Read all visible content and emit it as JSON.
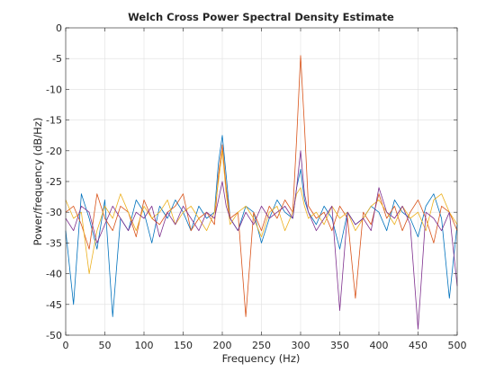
{
  "chart_data": {
    "type": "line",
    "title": "Welch Cross Power Spectral Density Estimate",
    "xlabel": "Frequency (Hz)",
    "ylabel": "Power/frequency (dB/Hz)",
    "xlim": [
      0,
      500
    ],
    "ylim": [
      -50,
      0
    ],
    "xticks": [
      0,
      50,
      100,
      150,
      200,
      250,
      300,
      350,
      400,
      450,
      500
    ],
    "yticks": [
      0,
      -5,
      -10,
      -15,
      -20,
      -25,
      -30,
      -35,
      -40,
      -45,
      -50
    ],
    "grid": true,
    "legend": "none",
    "colors": [
      "#0072BD",
      "#D95319",
      "#EDB120",
      "#7E2F8E"
    ],
    "series": [
      {
        "color": "#0072BD",
        "x": [
          0,
          10,
          20,
          30,
          40,
          50,
          60,
          70,
          80,
          90,
          100,
          110,
          120,
          130,
          140,
          150,
          160,
          170,
          180,
          190,
          195,
          200,
          205,
          210,
          220,
          230,
          240,
          250,
          260,
          270,
          280,
          290,
          295,
          300,
          305,
          310,
          320,
          330,
          340,
          350,
          360,
          370,
          380,
          390,
          400,
          410,
          420,
          430,
          440,
          450,
          460,
          470,
          480,
          490,
          500
        ],
        "y": [
          -33,
          -45,
          -27,
          -31,
          -36,
          -28,
          -47,
          -31,
          -33,
          -28,
          -30,
          -35,
          -29,
          -31,
          -28,
          -30,
          -33,
          -29,
          -31,
          -30,
          -22,
          -17.5,
          -24,
          -31,
          -33,
          -29,
          -30,
          -35,
          -31,
          -28,
          -30,
          -31,
          -26,
          -23,
          -28,
          -30,
          -32,
          -29,
          -31,
          -36,
          -30,
          -32,
          -31,
          -29,
          -30,
          -33,
          -28,
          -30,
          -31,
          -34,
          -29,
          -27,
          -31,
          -44,
          -32
        ]
      },
      {
        "color": "#D95319",
        "x": [
          0,
          10,
          20,
          30,
          40,
          50,
          60,
          70,
          80,
          90,
          100,
          110,
          120,
          130,
          140,
          150,
          160,
          170,
          180,
          190,
          195,
          200,
          205,
          210,
          220,
          230,
          240,
          250,
          260,
          270,
          280,
          290,
          295,
          300,
          305,
          310,
          320,
          330,
          340,
          350,
          360,
          370,
          380,
          390,
          400,
          410,
          420,
          430,
          440,
          450,
          460,
          470,
          480,
          490,
          500
        ],
        "y": [
          -30,
          -29,
          -32,
          -36,
          -27,
          -31,
          -33,
          -29,
          -30,
          -34,
          -28,
          -31,
          -32,
          -30,
          -29,
          -27,
          -33,
          -31,
          -30,
          -32,
          -24,
          -19,
          -26,
          -31,
          -30,
          -47,
          -30,
          -33,
          -29,
          -31,
          -28,
          -30,
          -18,
          -4.5,
          -16,
          -29,
          -31,
          -30,
          -33,
          -29,
          -31,
          -44,
          -30,
          -32,
          -27,
          -31,
          -29,
          -33,
          -30,
          -28,
          -31,
          -35,
          -29,
          -30,
          -33
        ]
      },
      {
        "color": "#EDB120",
        "x": [
          0,
          10,
          20,
          30,
          40,
          50,
          60,
          70,
          80,
          90,
          100,
          110,
          120,
          130,
          140,
          150,
          160,
          170,
          180,
          190,
          195,
          200,
          205,
          210,
          220,
          230,
          240,
          250,
          260,
          270,
          280,
          290,
          295,
          300,
          305,
          310,
          320,
          330,
          340,
          350,
          360,
          370,
          380,
          390,
          400,
          410,
          420,
          430,
          440,
          450,
          460,
          470,
          480,
          490,
          500
        ],
        "y": [
          -28,
          -31,
          -30,
          -40,
          -33,
          -29,
          -31,
          -27,
          -30,
          -33,
          -29,
          -31,
          -30,
          -28,
          -32,
          -30,
          -29,
          -31,
          -33,
          -30,
          -25,
          -20,
          -27,
          -32,
          -30,
          -29,
          -31,
          -34,
          -30,
          -29,
          -33,
          -30,
          -27,
          -26,
          -29,
          -31,
          -30,
          -32,
          -29,
          -31,
          -30,
          -33,
          -31,
          -29,
          -28,
          -30,
          -32,
          -29,
          -31,
          -30,
          -33,
          -28,
          -27,
          -30,
          -32
        ]
      },
      {
        "color": "#7E2F8E",
        "x": [
          0,
          10,
          20,
          30,
          40,
          50,
          60,
          70,
          80,
          90,
          100,
          110,
          120,
          130,
          140,
          150,
          160,
          170,
          180,
          190,
          195,
          200,
          205,
          210,
          220,
          230,
          240,
          250,
          260,
          270,
          280,
          290,
          295,
          300,
          305,
          310,
          320,
          330,
          340,
          350,
          360,
          370,
          380,
          390,
          400,
          410,
          420,
          430,
          440,
          450,
          460,
          470,
          480,
          490,
          500
        ],
        "y": [
          -31,
          -33,
          -29,
          -30,
          -35,
          -32,
          -29,
          -31,
          -33,
          -30,
          -31,
          -29,
          -34,
          -30,
          -32,
          -29,
          -31,
          -33,
          -30,
          -31,
          -28,
          -25,
          -29,
          -31,
          -33,
          -30,
          -32,
          -29,
          -31,
          -30,
          -29,
          -31,
          -26,
          -20,
          -27,
          -30,
          -33,
          -31,
          -29,
          -46,
          -30,
          -32,
          -31,
          -33,
          -26,
          -30,
          -31,
          -29,
          -32,
          -49,
          -30,
          -31,
          -33,
          -30,
          -42
        ]
      }
    ]
  }
}
